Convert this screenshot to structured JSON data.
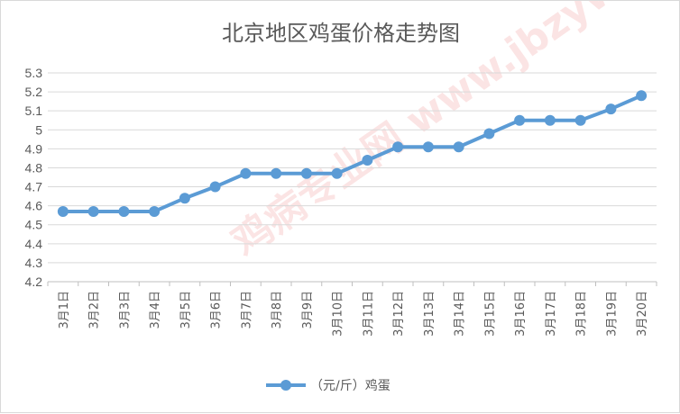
{
  "chart_data": {
    "type": "line",
    "title": "北京地区鸡蛋价格走势图",
    "categories": [
      "3月1日",
      "3月2日",
      "3月3日",
      "3月4日",
      "3月5日",
      "3月6日",
      "3月7日",
      "3月8日",
      "3月9日",
      "3月10日",
      "3月11日",
      "3月12日",
      "3月13日",
      "3月14日",
      "3月15日",
      "3月16日",
      "3月17日",
      "3月18日",
      "3月19日",
      "3月20日"
    ],
    "series": [
      {
        "name": "（元/斤）鸡蛋",
        "values": [
          4.57,
          4.57,
          4.57,
          4.57,
          4.64,
          4.7,
          4.77,
          4.77,
          4.77,
          4.77,
          4.84,
          4.91,
          4.91,
          4.91,
          4.98,
          5.05,
          5.05,
          5.05,
          5.11,
          5.18
        ],
        "color": "#5b9bd5"
      }
    ],
    "ylim": [
      4.2,
      5.3
    ],
    "yticks": [
      "4.2",
      "4.3",
      "4.4",
      "4.5",
      "4.6",
      "4.7",
      "4.8",
      "4.9",
      "5",
      "5.1",
      "5.2",
      "5.3"
    ],
    "xlabel": "",
    "ylabel": "",
    "grid": true,
    "legend_position": "bottom",
    "watermark": "鸡病专业网 www.jbzyw.com"
  }
}
